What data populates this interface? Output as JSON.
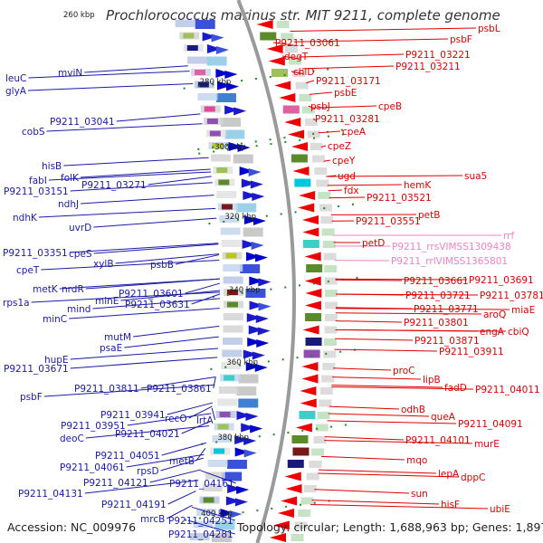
{
  "title": "Prochlorococcus marinus str. MIT 9211, complete genome",
  "footer": {
    "accession": "Accession: NC_009976",
    "summary": "Topology: circular; Length: 1,688,963 bp; Genes: 1,897"
  },
  "colors": {
    "left_label": "#1a1aaa",
    "right_label": "#e00000",
    "rrna_label": "#f080c8",
    "backbone": "#9a9a9a",
    "tick": "#1f8a1f"
  },
  "scale_marks": [
    {
      "text": "260 kbp",
      "y": 0.26
    },
    {
      "text": "280 kbp",
      "y": 0.148
    },
    {
      "text": "300 kbp",
      "y": 0.268
    },
    {
      "text": "320 kbp",
      "y": 0.397
    },
    {
      "text": "340 kbp",
      "y": 0.532
    },
    {
      "text": "360 kbp",
      "y": 0.665
    },
    {
      "text": "380 kbp",
      "y": 0.803
    },
    {
      "text": "400 kbp",
      "y": 0.943
    }
  ],
  "left_genes": [
    "leuC",
    "glyA",
    "mviN",
    "cobS",
    "P9211_03041",
    "hisB",
    "folK",
    "fabI",
    "P9211_03151",
    "P9211_03271",
    "ndhJ",
    "ndhK",
    "uvrD",
    "cpeS",
    "P9211_03351",
    "xylB",
    "cpeT",
    "psbB",
    "metK",
    "nrdR",
    "rps1a",
    "minE",
    "P9211_03601",
    "mind",
    "P9211_03631",
    "minC",
    "mutM",
    "psaE",
    "P9211_03671",
    "hupE",
    "P9211_03811",
    "P9211_03861",
    "psbF",
    "P9211_03941",
    "recO",
    "P9211_03951",
    "lrtA",
    "deoC",
    "P9211_04021",
    "P9211_04051",
    "metB",
    "P9211_04061",
    "rpsD",
    "P9211_04121",
    "P9211_04161",
    "P9211_04131",
    "P9211_04191",
    "mrcB",
    "P9211_04251",
    "P9211_04281"
  ],
  "right_genes": [
    "psbL",
    "P9211_03061",
    "psbF",
    "degT",
    "P9211_03221",
    "P9211_03211",
    "chlD",
    "P9211_03171",
    "psbE",
    "psbJ",
    "cpeB",
    "P9211_03281",
    "cpeA",
    "cpeZ",
    "cpeY",
    "ugd",
    "sua5",
    "fdx",
    "hemK",
    "P9211_03521",
    "petB",
    "P9211_03551",
    "petD",
    "rrf",
    "P9211_rrsVIMSS1309438",
    "P9211_rrlVIMSS1365801",
    "P9211_03661",
    "P9211_03691",
    "P9211_03721",
    "P9211_03781",
    "P9211_03771",
    "aroQ",
    "miaE",
    "P9211_03801",
    "engA",
    "cbiQ",
    "P9211_03871",
    "P9211_03911",
    "proC",
    "lipB",
    "fadD",
    "P9211_04011",
    "odhB",
    "queA",
    "P9211_04091",
    "P9211_04101",
    "murE",
    "mqo",
    "lepA",
    "dppC",
    "sun",
    "hisF",
    "ubiE"
  ]
}
